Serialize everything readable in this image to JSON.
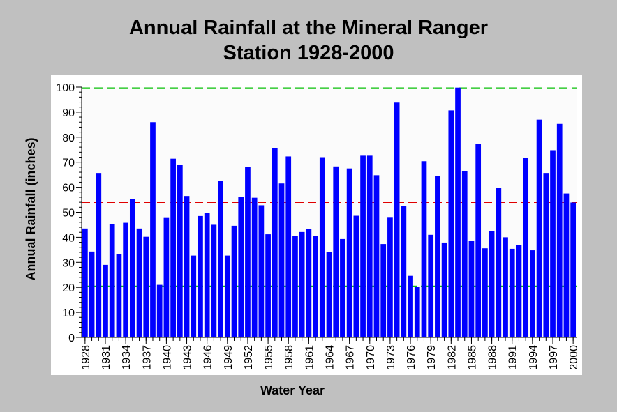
{
  "chart_data": {
    "type": "bar",
    "title": "Annual Rainfall at the Mineral Ranger Station 1928-2000",
    "title_lines": [
      "Annual Rainfall at the Mineral Ranger",
      "Station 1928-2000"
    ],
    "xlabel": "Water Year",
    "ylabel": "Annual Rainfall (inches)",
    "ylim": [
      0,
      100
    ],
    "y_ticks": [
      0,
      10,
      20,
      30,
      40,
      50,
      60,
      70,
      80,
      90,
      100
    ],
    "x_tick_labels": [
      "1928",
      "1931",
      "1934",
      "1937",
      "1940",
      "1943",
      "1946",
      "1949",
      "1952",
      "1955",
      "1958",
      "1961",
      "1964",
      "1967",
      "1970",
      "1973",
      "1976",
      "1979",
      "1982",
      "1985",
      "1988",
      "1991",
      "1994",
      "1997",
      "2000"
    ],
    "categories": [
      "1928",
      "1929",
      "1930",
      "1931",
      "1932",
      "1933",
      "1934",
      "1935",
      "1936",
      "1937",
      "1938",
      "1939",
      "1940",
      "1941",
      "1942",
      "1943",
      "1944",
      "1945",
      "1946",
      "1947",
      "1948",
      "1949",
      "1950",
      "1951",
      "1952",
      "1953",
      "1954",
      "1955",
      "1956",
      "1957",
      "1958",
      "1959",
      "1960",
      "1961",
      "1962",
      "1963",
      "1964",
      "1965",
      "1966",
      "1967",
      "1968",
      "1969",
      "1970",
      "1971",
      "1972",
      "1973",
      "1974",
      "1975",
      "1976",
      "1977",
      "1978",
      "1979",
      "1980",
      "1981",
      "1982",
      "1983",
      "1984",
      "1985",
      "1986",
      "1987",
      "1988",
      "1989",
      "1990",
      "1991",
      "1992",
      "1993",
      "1994",
      "1995",
      "1996",
      "1997",
      "1998",
      "1999",
      "2000"
    ],
    "values": [
      43.5,
      34.3,
      65.7,
      29.0,
      45.2,
      33.4,
      45.8,
      55.2,
      43.5,
      40.2,
      86.0,
      21.0,
      48.0,
      71.4,
      69.0,
      56.5,
      32.7,
      48.5,
      49.8,
      45.0,
      62.5,
      32.7,
      44.6,
      56.2,
      68.2,
      55.8,
      52.8,
      41.2,
      75.7,
      61.5,
      72.3,
      40.5,
      42.1,
      43.2,
      40.4,
      72.0,
      34.0,
      68.3,
      39.3,
      67.5,
      48.6,
      72.6,
      72.6,
      64.8,
      37.3,
      48.1,
      93.8,
      52.5,
      24.6,
      20.3,
      70.4,
      41.0,
      64.5,
      37.9,
      90.7,
      99.8,
      66.5,
      38.6,
      77.2,
      35.6,
      42.5,
      59.8,
      40.0,
      35.4,
      37.0,
      71.8,
      34.8,
      87.0,
      65.7,
      74.8,
      85.3,
      57.5,
      53.9
    ],
    "bar_color": "#0000ff",
    "reference_lines": [
      {
        "value": 99.7,
        "color": "#00c000",
        "style": "dashed"
      },
      {
        "value": 53.9,
        "color": "#e00000",
        "style": "dashed"
      },
      {
        "value": 20.5,
        "color": "#00c000",
        "style": "dashed"
      }
    ],
    "grid": false,
    "background": "#ffffff",
    "page_background": "#c0c0c0"
  }
}
